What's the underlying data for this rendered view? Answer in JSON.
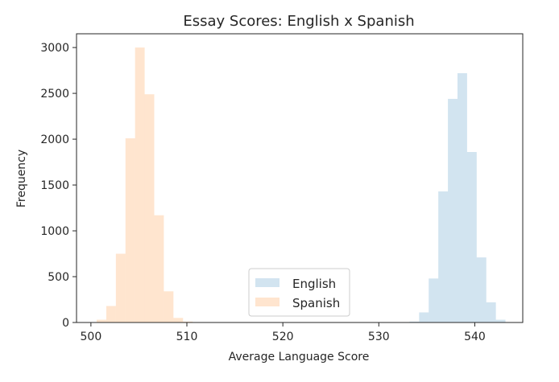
{
  "chart_data": {
    "type": "bar",
    "subtype": "histogram",
    "title": "Essay Scores: English x Spanish",
    "xlabel": "Average Language Score",
    "ylabel": "Frequency",
    "xlim": [
      498.5,
      545
    ],
    "ylim": [
      0,
      3150
    ],
    "xticks": [
      500,
      510,
      520,
      530,
      540
    ],
    "yticks": [
      0,
      500,
      1000,
      1500,
      2000,
      2500,
      3000
    ],
    "legend_position": "lower center",
    "grid": false,
    "series": [
      {
        "name": "English",
        "color": "#1f77b4",
        "opacity": 0.2,
        "bin_edges": [
          533.2,
          534.2,
          535.2,
          536.2,
          537.2,
          538.2,
          539.2,
          540.2,
          541.2,
          542.2,
          543.2
        ],
        "values": [
          10,
          110,
          480,
          1430,
          2440,
          2720,
          1860,
          710,
          220,
          30
        ]
      },
      {
        "name": "Spanish",
        "color": "#ff7f0e",
        "opacity": 0.2,
        "bin_edges": [
          500.6,
          501.6,
          502.6,
          503.6,
          504.6,
          505.6,
          506.6,
          507.6,
          508.6,
          509.6,
          510.6,
          511.6
        ],
        "values": [
          30,
          180,
          750,
          2010,
          3000,
          2490,
          1170,
          340,
          50,
          10,
          0
        ]
      }
    ]
  }
}
